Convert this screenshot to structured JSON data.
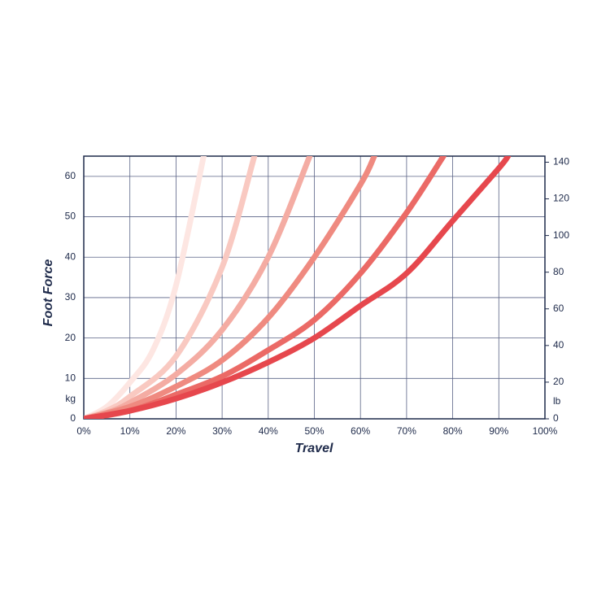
{
  "chart_data": {
    "type": "line",
    "x_label": "Travel",
    "y_label": "Foot Force",
    "y_unit": "kg",
    "y2_unit": "lb",
    "xlim": [
      0,
      100
    ],
    "xticks": [
      {
        "value": 0,
        "label": "0%"
      },
      {
        "value": 10,
        "label": "10%"
      },
      {
        "value": 20,
        "label": "20%"
      },
      {
        "value": 30,
        "label": "30%"
      },
      {
        "value": 40,
        "label": "40%"
      },
      {
        "value": 50,
        "label": "50%"
      },
      {
        "value": 60,
        "label": "60%"
      },
      {
        "value": 70,
        "label": "70%"
      },
      {
        "value": 80,
        "label": "80%"
      },
      {
        "value": 90,
        "label": "90%"
      },
      {
        "value": 100,
        "label": "100%"
      }
    ],
    "ylim": [
      0,
      65
    ],
    "yticks": [
      0,
      10,
      20,
      30,
      40,
      50,
      60
    ],
    "y2lim": [
      0,
      143.3
    ],
    "y2ticks": [
      0,
      20,
      40,
      60,
      80,
      100,
      120,
      140
    ],
    "grid": true,
    "series": [
      {
        "color": "#fde6e2",
        "x": [
          0,
          5,
          10,
          15,
          20,
          26
        ],
        "values": [
          0,
          3,
          9,
          17,
          33,
          65
        ]
      },
      {
        "color": "#f9c9c1",
        "x": [
          0,
          5,
          10,
          20,
          30,
          37
        ],
        "values": [
          0,
          2,
          5.5,
          15.5,
          37.5,
          65
        ]
      },
      {
        "color": "#f4aca3",
        "x": [
          0,
          5,
          10,
          20,
          30,
          40,
          49
        ],
        "values": [
          0,
          1.5,
          4,
          11,
          22,
          40,
          65
        ]
      },
      {
        "color": "#ef8a80",
        "x": [
          0,
          10,
          20,
          30,
          40,
          50,
          60,
          63
        ],
        "values": [
          0,
          3,
          8,
          14.5,
          25,
          40,
          58,
          65
        ]
      },
      {
        "color": "#eb6a66",
        "x": [
          0,
          10,
          20,
          30,
          40,
          50,
          60,
          70,
          78
        ],
        "values": [
          0,
          2,
          6,
          10.5,
          17,
          24.5,
          36,
          51,
          65
        ]
      },
      {
        "color": "#e6474d",
        "x": [
          0,
          10,
          20,
          30,
          40,
          50,
          60,
          70,
          80,
          90,
          92
        ],
        "values": [
          0,
          2,
          5,
          9,
          14,
          20,
          28,
          36,
          49,
          62,
          65
        ]
      }
    ]
  }
}
